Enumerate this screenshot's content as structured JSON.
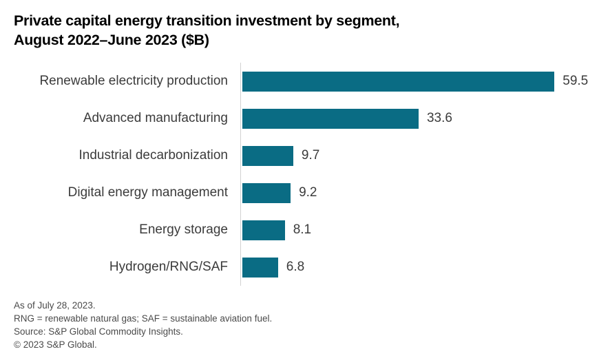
{
  "header": {
    "title_line1": "Private capital energy transition investment by segment,",
    "title_line2": "August 2022–June 2023 ($B)"
  },
  "chart_data": {
    "type": "bar",
    "orientation": "horizontal",
    "title": "Private capital energy transition investment by segment, August 2022–June 2023 ($B)",
    "categories": [
      "Renewable electricity production",
      "Advanced manufacturing",
      "Industrial decarbonization",
      "Digital energy management",
      "Energy storage",
      "Hydrogen/RNG/SAF"
    ],
    "values": [
      59.5,
      33.6,
      9.7,
      9.2,
      8.1,
      6.8
    ],
    "value_labels": [
      "59.5",
      "33.6",
      "9.7",
      "9.2",
      "8.1",
      "6.8"
    ],
    "xlabel": "",
    "ylabel": "",
    "xlim": [
      0,
      68
    ],
    "grid": false,
    "legend": false,
    "bar_color": "#0a6c84",
    "axis_line_color": "#d2d2d2",
    "label_color": "#3b3b3b"
  },
  "footer": {
    "lines": [
      "As of July 28, 2023.",
      "RNG = renewable natural gas; SAF = sustainable aviation fuel.",
      "Source: S&P Global Commodity Insights.",
      "© 2023 S&P Global."
    ]
  }
}
